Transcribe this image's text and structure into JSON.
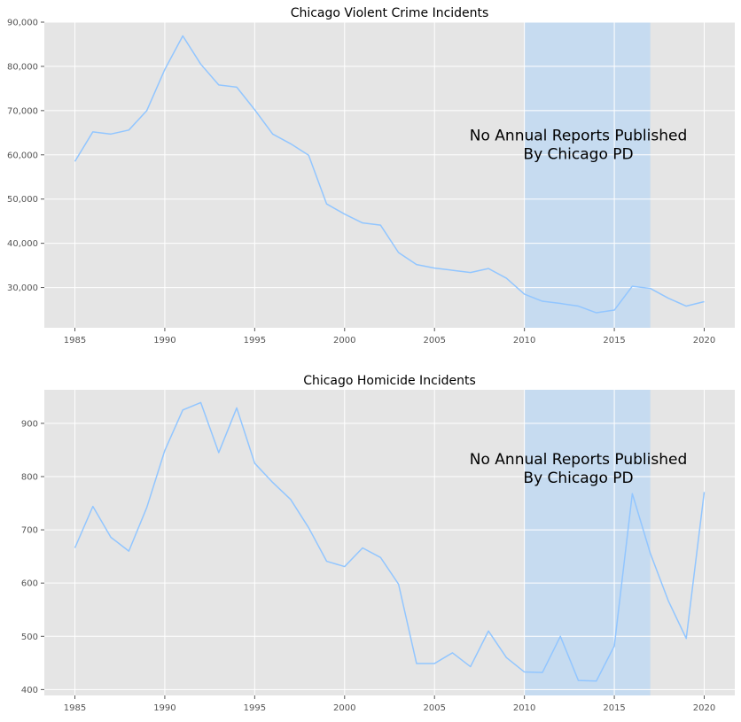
{
  "chart_data": [
    {
      "type": "line",
      "title": "Chicago Violent Crime Incidents",
      "xlabel": "",
      "ylabel": "",
      "xlim": [
        1983.3,
        2021.7
      ],
      "ylim": [
        20900,
        90000
      ],
      "grid": true,
      "x_ticks": [
        "1985",
        "1990",
        "1995",
        "2000",
        "2005",
        "2010",
        "2015",
        "2020"
      ],
      "y_ticks": [
        "30,000",
        "40,000",
        "50,000",
        "60,000",
        "70,000",
        "80,000",
        "90,000"
      ],
      "series": [
        {
          "color": "#92c6ff",
          "x": [
            1985,
            1986,
            1987,
            1988,
            1989,
            1990,
            1991,
            1992,
            1993,
            1994,
            1995,
            1996,
            1997,
            1998,
            1999,
            2000,
            2001,
            2002,
            2003,
            2004,
            2005,
            2006,
            2007,
            2008,
            2009,
            2010,
            2011,
            2012,
            2013,
            2014,
            2015,
            2016,
            2017,
            2018,
            2019,
            2020
          ],
          "y": [
            58500,
            65200,
            64700,
            65600,
            70000,
            79300,
            86900,
            80500,
            75800,
            75300,
            70200,
            64700,
            62500,
            59900,
            48900,
            46600,
            44600,
            44100,
            37900,
            35200,
            34400,
            33900,
            33400,
            34300,
            32100,
            28500,
            26900,
            26400,
            25800,
            24300,
            24900,
            30300,
            29800,
            27600,
            25800,
            26800
          ]
        }
      ],
      "shaded_region": {
        "x": [
          2010,
          2017
        ],
        "color": "#c6dbf0"
      },
      "annotation": {
        "x": 2013,
        "y": 62500,
        "lines": [
          "No Annual Reports Published",
          "By Chicago PD"
        ]
      }
    },
    {
      "type": "line",
      "title": "Chicago Homicide Incidents",
      "xlabel": "",
      "ylabel": "",
      "xlim": [
        1983.3,
        2021.7
      ],
      "ylim": [
        389,
        963
      ],
      "grid": true,
      "x_ticks": [
        "1985",
        "1990",
        "1995",
        "2000",
        "2005",
        "2010",
        "2015",
        "2020"
      ],
      "y_ticks": [
        "400",
        "500",
        "600",
        "700",
        "800",
        "900"
      ],
      "series": [
        {
          "color": "#92c6ff",
          "x": [
            1985,
            1986,
            1987,
            1988,
            1989,
            1990,
            1991,
            1992,
            1993,
            1994,
            1995,
            1996,
            1997,
            1998,
            1999,
            2000,
            2001,
            2002,
            2003,
            2004,
            2005,
            2006,
            2007,
            2008,
            2009,
            2010,
            2011,
            2012,
            2013,
            2014,
            2015,
            2016,
            2017,
            2018,
            2019,
            2020
          ],
          "y": [
            666,
            744,
            686,
            660,
            742,
            849,
            925,
            939,
            845,
            929,
            825,
            789,
            757,
            704,
            641,
            631,
            666,
            648,
            598,
            449,
            449,
            469,
            443,
            510,
            460,
            433,
            432,
            500,
            417,
            416,
            482,
            768,
            656,
            567,
            496,
            771
          ]
        }
      ],
      "shaded_region": {
        "x": [
          2010,
          2017
        ],
        "color": "#c6dbf0"
      },
      "annotation": {
        "x": 2013,
        "y": 817,
        "lines": [
          "No Annual Reports Published",
          "By Chicago PD"
        ]
      }
    }
  ]
}
